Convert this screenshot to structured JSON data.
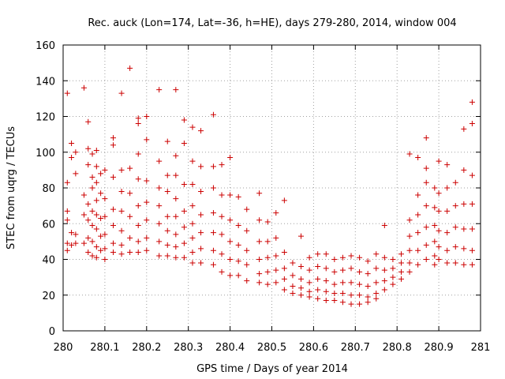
{
  "chart_data": {
    "type": "scatter",
    "title": "Rec. auck (Lon=174, Lat=-36, h=HE), days 279-280, 2014, window 004",
    "xlabel": "GPS time / Days of year 2014",
    "ylabel": "STEC from uqrg / TECUs",
    "xlim": [
      280,
      281
    ],
    "ylim": [
      0,
      160
    ],
    "x_ticks": [
      "280",
      "280.1",
      "280.2",
      "280.3",
      "280.4",
      "280.5",
      "280.6",
      "280.7",
      "280.8",
      "280.9",
      "281"
    ],
    "y_ticks": [
      "0",
      "20",
      "40",
      "60",
      "80",
      "100",
      "120",
      "140",
      "160"
    ],
    "grid": true,
    "marker": "plus",
    "color": "#cc0000",
    "points": [
      [
        280.01,
        133
      ],
      [
        280.01,
        83
      ],
      [
        280.01,
        67
      ],
      [
        280.01,
        62
      ],
      [
        280.01,
        49
      ],
      [
        280.01,
        45
      ],
      [
        280.02,
        105
      ],
      [
        280.02,
        97
      ],
      [
        280.02,
        55
      ],
      [
        280.02,
        48
      ],
      [
        280.03,
        100
      ],
      [
        280.03,
        88
      ],
      [
        280.03,
        54
      ],
      [
        280.03,
        49
      ],
      [
        280.05,
        136
      ],
      [
        280.05,
        76
      ],
      [
        280.05,
        65
      ],
      [
        280.05,
        49
      ],
      [
        280.06,
        117
      ],
      [
        280.06,
        102
      ],
      [
        280.06,
        93
      ],
      [
        280.06,
        71
      ],
      [
        280.06,
        62
      ],
      [
        280.06,
        52
      ],
      [
        280.06,
        44
      ],
      [
        280.07,
        99
      ],
      [
        280.07,
        86
      ],
      [
        280.07,
        80
      ],
      [
        280.07,
        67
      ],
      [
        280.07,
        59
      ],
      [
        280.07,
        50
      ],
      [
        280.07,
        42
      ],
      [
        280.08,
        101
      ],
      [
        280.08,
        92
      ],
      [
        280.08,
        83
      ],
      [
        280.08,
        73
      ],
      [
        280.08,
        65
      ],
      [
        280.08,
        57
      ],
      [
        280.08,
        47
      ],
      [
        280.08,
        41
      ],
      [
        280.09,
        88
      ],
      [
        280.09,
        77
      ],
      [
        280.09,
        63
      ],
      [
        280.09,
        53
      ],
      [
        280.09,
        45
      ],
      [
        280.1,
        90
      ],
      [
        280.1,
        74
      ],
      [
        280.1,
        64
      ],
      [
        280.1,
        54
      ],
      [
        280.1,
        46
      ],
      [
        280.1,
        40
      ],
      [
        280.12,
        108
      ],
      [
        280.12,
        104
      ],
      [
        280.12,
        86
      ],
      [
        280.12,
        68
      ],
      [
        280.12,
        59
      ],
      [
        280.12,
        49
      ],
      [
        280.12,
        44
      ],
      [
        280.14,
        133
      ],
      [
        280.14,
        90
      ],
      [
        280.14,
        78
      ],
      [
        280.14,
        67
      ],
      [
        280.14,
        56
      ],
      [
        280.14,
        48
      ],
      [
        280.14,
        43
      ],
      [
        280.16,
        147
      ],
      [
        280.16,
        91
      ],
      [
        280.16,
        77
      ],
      [
        280.16,
        64
      ],
      [
        280.16,
        52
      ],
      [
        280.16,
        44
      ],
      [
        280.18,
        119
      ],
      [
        280.18,
        116
      ],
      [
        280.18,
        99
      ],
      [
        280.18,
        85
      ],
      [
        280.18,
        70
      ],
      [
        280.18,
        59
      ],
      [
        280.18,
        50
      ],
      [
        280.18,
        44
      ],
      [
        280.2,
        120
      ],
      [
        280.2,
        107
      ],
      [
        280.2,
        84
      ],
      [
        280.2,
        72
      ],
      [
        280.2,
        62
      ],
      [
        280.2,
        52
      ],
      [
        280.2,
        45
      ],
      [
        280.23,
        135
      ],
      [
        280.23,
        95
      ],
      [
        280.23,
        80
      ],
      [
        280.23,
        70
      ],
      [
        280.23,
        60
      ],
      [
        280.23,
        50
      ],
      [
        280.23,
        42
      ],
      [
        280.25,
        106
      ],
      [
        280.25,
        87
      ],
      [
        280.25,
        78
      ],
      [
        280.25,
        64
      ],
      [
        280.25,
        56
      ],
      [
        280.25,
        48
      ],
      [
        280.25,
        42
      ],
      [
        280.27,
        135
      ],
      [
        280.27,
        98
      ],
      [
        280.27,
        87
      ],
      [
        280.27,
        74
      ],
      [
        280.27,
        64
      ],
      [
        280.27,
        54
      ],
      [
        280.27,
        47
      ],
      [
        280.27,
        41
      ],
      [
        280.29,
        118
      ],
      [
        280.29,
        105
      ],
      [
        280.29,
        82
      ],
      [
        280.29,
        67
      ],
      [
        280.29,
        58
      ],
      [
        280.29,
        49
      ],
      [
        280.29,
        41
      ],
      [
        280.31,
        114
      ],
      [
        280.31,
        95
      ],
      [
        280.31,
        82
      ],
      [
        280.31,
        70
      ],
      [
        280.31,
        60
      ],
      [
        280.31,
        52
      ],
      [
        280.31,
        44
      ],
      [
        280.31,
        38
      ],
      [
        280.33,
        112
      ],
      [
        280.33,
        92
      ],
      [
        280.33,
        78
      ],
      [
        280.33,
        65
      ],
      [
        280.33,
        55
      ],
      [
        280.33,
        46
      ],
      [
        280.33,
        38
      ],
      [
        280.36,
        121
      ],
      [
        280.36,
        92
      ],
      [
        280.36,
        80
      ],
      [
        280.36,
        66
      ],
      [
        280.36,
        55
      ],
      [
        280.36,
        45
      ],
      [
        280.36,
        37
      ],
      [
        280.38,
        93
      ],
      [
        280.38,
        76
      ],
      [
        280.38,
        64
      ],
      [
        280.38,
        54
      ],
      [
        280.38,
        43
      ],
      [
        280.38,
        33
      ],
      [
        280.4,
        97
      ],
      [
        280.4,
        76
      ],
      [
        280.4,
        62
      ],
      [
        280.4,
        50
      ],
      [
        280.4,
        40
      ],
      [
        280.4,
        31
      ],
      [
        280.42,
        75
      ],
      [
        280.42,
        59
      ],
      [
        280.42,
        48
      ],
      [
        280.42,
        39
      ],
      [
        280.42,
        31
      ],
      [
        280.44,
        68
      ],
      [
        280.44,
        56
      ],
      [
        280.44,
        45
      ],
      [
        280.44,
        37
      ],
      [
        280.44,
        28
      ],
      [
        280.47,
        77
      ],
      [
        280.47,
        62
      ],
      [
        280.47,
        50
      ],
      [
        280.47,
        40
      ],
      [
        280.47,
        32
      ],
      [
        280.47,
        27
      ],
      [
        280.49,
        61
      ],
      [
        280.49,
        50
      ],
      [
        280.49,
        41
      ],
      [
        280.49,
        33
      ],
      [
        280.49,
        26
      ],
      [
        280.51,
        66
      ],
      [
        280.51,
        52
      ],
      [
        280.51,
        42
      ],
      [
        280.51,
        34
      ],
      [
        280.51,
        27
      ],
      [
        280.53,
        73
      ],
      [
        280.53,
        44
      ],
      [
        280.53,
        35
      ],
      [
        280.53,
        29
      ],
      [
        280.53,
        23
      ],
      [
        280.55,
        38
      ],
      [
        280.55,
        31
      ],
      [
        280.55,
        25
      ],
      [
        280.55,
        21
      ],
      [
        280.57,
        53
      ],
      [
        280.57,
        36
      ],
      [
        280.57,
        29
      ],
      [
        280.57,
        24
      ],
      [
        280.57,
        20
      ],
      [
        280.59,
        41
      ],
      [
        280.59,
        34
      ],
      [
        280.59,
        27
      ],
      [
        280.59,
        22
      ],
      [
        280.59,
        19
      ],
      [
        280.61,
        43
      ],
      [
        280.61,
        36
      ],
      [
        280.61,
        29
      ],
      [
        280.61,
        23
      ],
      [
        280.61,
        18
      ],
      [
        280.63,
        43
      ],
      [
        280.63,
        35
      ],
      [
        280.63,
        28
      ],
      [
        280.63,
        22
      ],
      [
        280.63,
        17
      ],
      [
        280.65,
        40
      ],
      [
        280.65,
        33
      ],
      [
        280.65,
        26
      ],
      [
        280.65,
        21
      ],
      [
        280.65,
        17
      ],
      [
        280.67,
        41
      ],
      [
        280.67,
        34
      ],
      [
        280.67,
        27
      ],
      [
        280.67,
        21
      ],
      [
        280.67,
        16
      ],
      [
        280.69,
        42
      ],
      [
        280.69,
        35
      ],
      [
        280.69,
        27
      ],
      [
        280.69,
        20
      ],
      [
        280.69,
        15
      ],
      [
        280.71,
        41
      ],
      [
        280.71,
        33
      ],
      [
        280.71,
        26
      ],
      [
        280.71,
        20
      ],
      [
        280.71,
        15
      ],
      [
        280.73,
        39
      ],
      [
        280.73,
        32
      ],
      [
        280.73,
        25
      ],
      [
        280.73,
        19
      ],
      [
        280.73,
        16
      ],
      [
        280.75,
        43
      ],
      [
        280.75,
        35
      ],
      [
        280.75,
        27
      ],
      [
        280.75,
        21
      ],
      [
        280.75,
        18
      ],
      [
        280.77,
        59
      ],
      [
        280.77,
        41
      ],
      [
        280.77,
        34
      ],
      [
        280.77,
        28
      ],
      [
        280.77,
        23
      ],
      [
        280.79,
        40
      ],
      [
        280.79,
        35
      ],
      [
        280.79,
        30
      ],
      [
        280.79,
        26
      ],
      [
        280.81,
        43
      ],
      [
        280.81,
        38
      ],
      [
        280.81,
        33
      ],
      [
        280.81,
        29
      ],
      [
        280.83,
        99
      ],
      [
        280.83,
        62
      ],
      [
        280.83,
        53
      ],
      [
        280.83,
        45
      ],
      [
        280.83,
        38
      ],
      [
        280.83,
        33
      ],
      [
        280.85,
        97
      ],
      [
        280.85,
        76
      ],
      [
        280.85,
        65
      ],
      [
        280.85,
        55
      ],
      [
        280.85,
        45
      ],
      [
        280.85,
        37
      ],
      [
        280.87,
        108
      ],
      [
        280.87,
        91
      ],
      [
        280.87,
        83
      ],
      [
        280.87,
        70
      ],
      [
        280.87,
        58
      ],
      [
        280.87,
        48
      ],
      [
        280.87,
        40
      ],
      [
        280.89,
        80
      ],
      [
        280.89,
        69
      ],
      [
        280.89,
        59
      ],
      [
        280.89,
        50
      ],
      [
        280.89,
        42
      ],
      [
        280.89,
        37
      ],
      [
        280.9,
        95
      ],
      [
        280.9,
        77
      ],
      [
        280.9,
        67
      ],
      [
        280.9,
        56
      ],
      [
        280.9,
        47
      ],
      [
        280.9,
        40
      ],
      [
        280.92,
        93
      ],
      [
        280.92,
        80
      ],
      [
        280.92,
        67
      ],
      [
        280.92,
        55
      ],
      [
        280.92,
        45
      ],
      [
        280.92,
        38
      ],
      [
        280.94,
        83
      ],
      [
        280.94,
        70
      ],
      [
        280.94,
        58
      ],
      [
        280.94,
        47
      ],
      [
        280.94,
        38
      ],
      [
        280.96,
        113
      ],
      [
        280.96,
        90
      ],
      [
        280.96,
        71
      ],
      [
        280.96,
        57
      ],
      [
        280.96,
        46
      ],
      [
        280.96,
        37
      ],
      [
        280.98,
        128
      ],
      [
        280.98,
        116
      ],
      [
        280.98,
        87
      ],
      [
        280.98,
        71
      ],
      [
        280.98,
        57
      ],
      [
        280.98,
        45
      ],
      [
        280.98,
        37
      ]
    ]
  }
}
